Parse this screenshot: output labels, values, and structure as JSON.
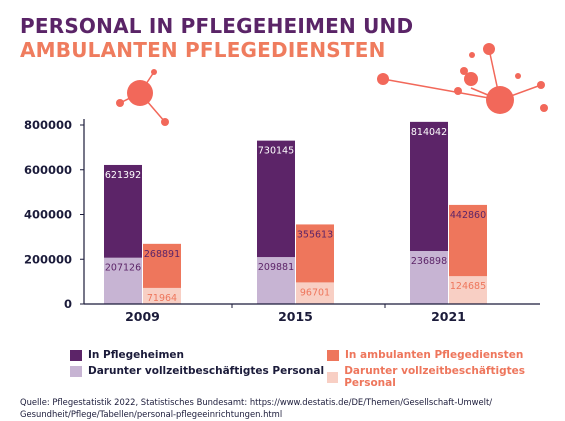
{
  "header": {
    "title_line1": "PERSONAL IN PFLEGEHEIMEN UND",
    "title_line2": "AMBULANTEN PFLEGEDIENSTEN"
  },
  "colors": {
    "title1": "#5a2467",
    "title2": "#ef7c5e",
    "heim": "#5c2468",
    "heim_vz": "#c7b4d3",
    "amb": "#ee765c",
    "amb_vz": "#f8cfc4",
    "axis": "#1b1b3a",
    "deco": "#f2685a"
  },
  "chart_data": {
    "type": "bar",
    "categories": [
      "2009",
      "2015",
      "2021"
    ],
    "ylim": [
      0,
      800000
    ],
    "yticks": [
      "0",
      "200000",
      "400000",
      "600000",
      "800000"
    ],
    "grid": false,
    "legend_position": "bottom",
    "series": [
      {
        "name": "In Pflegeheimen",
        "values": [
          621392,
          730145,
          814042
        ]
      },
      {
        "name": "Darunter vollzeitbeschäftigtes Personal",
        "values": [
          207126,
          209881,
          236898
        ]
      },
      {
        "name": "In ambulanten Pflegediensten",
        "values": [
          268891,
          355613,
          442860
        ]
      },
      {
        "name": "Darunter vollzeitbeschäftigtes Personal",
        "values": [
          71964,
          96701,
          124685
        ]
      }
    ]
  },
  "legend": {
    "heim": "In Pflegeheimen",
    "heim_vz": "Darunter vollzeitbeschäftigtes Personal",
    "amb": "In ambulanten Pflegediensten",
    "amb_vz": "Darunter vollzeitbeschäftigtes Personal"
  },
  "source": {
    "line1": "Quelle: Pflegestatistik 2022, Statistisches Bundesamt:  https://www.destatis.de/DE/Themen/Gesellschaft-Umwelt/",
    "line2": "Gesundheit/Pflege/Tabellen/personal-pflegeeinrichtungen.html"
  }
}
